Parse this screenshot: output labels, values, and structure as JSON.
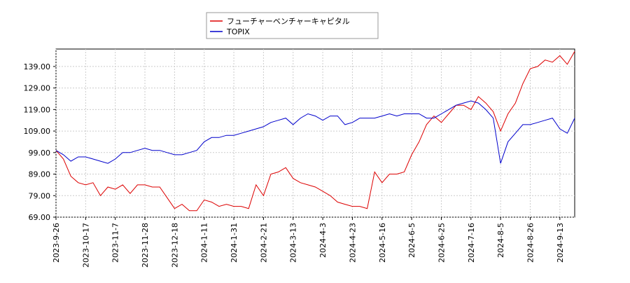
{
  "chart_data": {
    "type": "line",
    "categories": [
      "2023-9-26",
      null,
      null,
      null,
      "2023-10-17",
      null,
      null,
      null,
      "2023-11-7",
      null,
      null,
      null,
      "2023-11-28",
      null,
      null,
      null,
      "2023-12-18",
      null,
      null,
      null,
      "2024-1-11",
      null,
      null,
      null,
      "2024-1-31",
      null,
      null,
      null,
      "2024-2-21",
      null,
      null,
      null,
      "2024-3-13",
      null,
      null,
      null,
      "2024-4-3",
      null,
      null,
      null,
      "2024-4-23",
      null,
      null,
      null,
      "2024-5-16",
      null,
      null,
      null,
      "2024-6-5",
      null,
      null,
      null,
      "2024-6-25",
      null,
      null,
      null,
      "2024-7-16",
      null,
      null,
      null,
      "2024-8-5",
      null,
      null,
      null,
      "2024-8-26",
      null,
      null,
      null,
      "2024-9-13",
      null,
      null
    ],
    "series": [
      {
        "name": "フューチャーベンチャーキャピタル",
        "color": "#dd0000",
        "values": [
          100,
          96,
          88,
          85,
          84,
          85,
          79,
          83,
          82,
          84,
          80,
          84,
          84,
          83,
          83,
          78,
          73,
          75,
          72,
          72,
          77,
          76,
          74,
          75,
          74,
          74,
          73,
          84,
          79,
          89,
          90,
          92,
          87,
          85,
          84,
          83,
          81,
          79,
          76,
          75,
          74,
          74,
          73,
          90,
          85,
          89,
          89,
          90,
          98,
          104,
          112,
          116,
          113,
          117,
          121,
          121,
          119,
          125,
          122,
          118,
          109,
          117,
          122,
          131,
          138,
          139,
          142,
          141,
          144,
          140,
          146
        ]
      },
      {
        "name": "TOPIX",
        "color": "#0000cc",
        "values": [
          100,
          98,
          95,
          97,
          97,
          96,
          95,
          94,
          96,
          99,
          99,
          100,
          101,
          100,
          100,
          99,
          98,
          98,
          99,
          100,
          104,
          106,
          106,
          107,
          107,
          108,
          109,
          110,
          111,
          113,
          114,
          115,
          112,
          115,
          117,
          116,
          114,
          116,
          116,
          112,
          113,
          115,
          115,
          115,
          116,
          117,
          116,
          117,
          117,
          117,
          115,
          115,
          117,
          119,
          121,
          122,
          123,
          122,
          119,
          115,
          94,
          104,
          108,
          112,
          112,
          113,
          114,
          115,
          110,
          108,
          115
        ]
      }
    ],
    "ylim": [
      69,
      147.1
    ],
    "yticks": [
      {
        "value": 69,
        "label": "69.00"
      },
      {
        "value": 79,
        "label": "79.00"
      },
      {
        "value": 89,
        "label": "89.00"
      },
      {
        "value": 99,
        "label": "99.00"
      },
      {
        "value": 109,
        "label": "109.00"
      },
      {
        "value": 119,
        "label": "119.00"
      },
      {
        "value": 129,
        "label": "129.00"
      },
      {
        "value": 139,
        "label": "139.00"
      }
    ],
    "grid": true
  }
}
